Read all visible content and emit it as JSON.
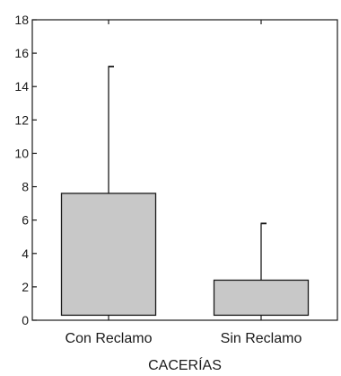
{
  "chart_data": {
    "type": "bar",
    "categories": [
      "Con Reclamo",
      "Sin Reclamo"
    ],
    "series": [
      {
        "values": [
          7.6,
          2.4
        ],
        "error_upper": [
          15.2,
          5.8
        ],
        "baseline": 0.3
      }
    ],
    "xlabel": "CACERÍAS",
    "ylabel": "",
    "ylim": [
      0,
      18
    ],
    "yticks": [
      "0",
      "2",
      "4",
      "6",
      "8",
      "10",
      "12",
      "14",
      "16",
      "18"
    ],
    "grid": false,
    "colors": {
      "bar_fill": "#c8c8c8",
      "stroke": "#1a1a1a",
      "background": "#ffffff"
    }
  }
}
